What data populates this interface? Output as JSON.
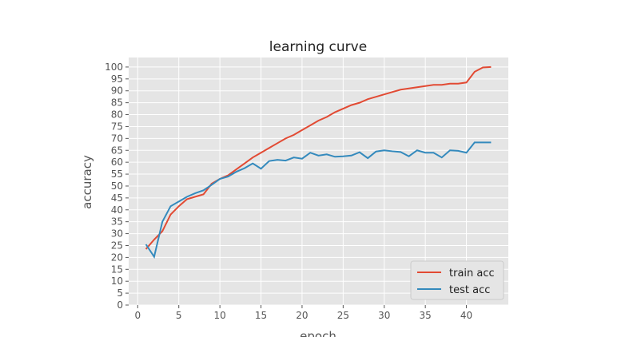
{
  "chart_data": {
    "type": "line",
    "title": "learning curve",
    "xlabel": "epoch",
    "ylabel": "accuracy",
    "xlim": [
      -1.1,
      45.1
    ],
    "ylim": [
      0,
      104
    ],
    "xticks": [
      0,
      5,
      10,
      15,
      20,
      25,
      30,
      35,
      40
    ],
    "yticks": [
      0,
      5,
      10,
      15,
      20,
      25,
      30,
      35,
      40,
      45,
      50,
      55,
      60,
      65,
      70,
      75,
      80,
      85,
      90,
      95,
      100
    ],
    "grid": true,
    "legend_position": "lower-right",
    "x": [
      1,
      2,
      3,
      4,
      5,
      6,
      7,
      8,
      9,
      10,
      11,
      12,
      13,
      14,
      15,
      16,
      17,
      18,
      19,
      20,
      21,
      22,
      23,
      24,
      25,
      26,
      27,
      28,
      29,
      30,
      31,
      32,
      33,
      34,
      35,
      36,
      37,
      38,
      39,
      40,
      41,
      42,
      43
    ],
    "series": [
      {
        "name": "train acc",
        "color": "#E24A33",
        "values": [
          23.5,
          27.5,
          31,
          38,
          41.5,
          44.5,
          45.5,
          46.5,
          51,
          53,
          54.5,
          57,
          59.5,
          62,
          64,
          66,
          68,
          70,
          71.5,
          73.5,
          75.5,
          77.5,
          79,
          81,
          82.5,
          84,
          85,
          86.5,
          87.5,
          88.5,
          89.5,
          90.5,
          91,
          91.5,
          92,
          92.5,
          92.5,
          93,
          93,
          93.5,
          98,
          99.8,
          100
        ]
      },
      {
        "name": "test acc",
        "color": "#348ABD",
        "values": [
          25.5,
          20.3,
          35,
          41.5,
          43.5,
          45.5,
          47,
          48.2,
          50.5,
          53,
          54,
          56,
          57.5,
          59.5,
          57.3,
          60.5,
          61,
          60.7,
          62,
          61.5,
          64,
          62.8,
          63.3,
          62.3,
          62.5,
          62.8,
          64.2,
          61.7,
          64.5,
          65,
          64.6,
          64.3,
          62.5,
          65,
          64,
          64,
          62,
          65,
          64.8,
          64,
          68.3,
          68.3,
          68.3
        ]
      }
    ],
    "background_color": "#E5E5E5"
  }
}
